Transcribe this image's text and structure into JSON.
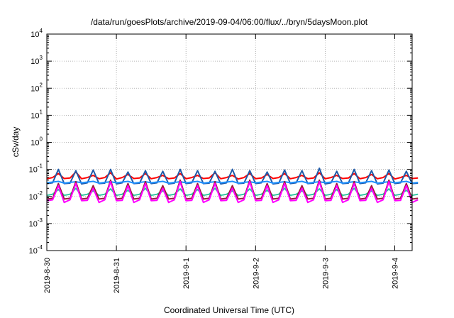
{
  "chart_data": {
    "type": "line",
    "title": "/data/run/goesPlots/archive/2019-09-04/06:00/flux/../bryn/5daysMoon.plot",
    "xlabel": "Coordinated Universal Time (UTC)",
    "ylabel": "cSv/day",
    "y_scale": "log",
    "ylim": [
      0.0001,
      10000
    ],
    "y_ticks": [
      {
        "base": "10",
        "exp": "-4",
        "value": 0.0001
      },
      {
        "base": "10",
        "exp": "-3",
        "value": 0.001
      },
      {
        "base": "10",
        "exp": "-2",
        "value": 0.01
      },
      {
        "base": "10",
        "exp": "-1",
        "value": 0.1
      },
      {
        "base": "10",
        "exp": "0",
        "value": 1
      },
      {
        "base": "10",
        "exp": "1",
        "value": 10
      },
      {
        "base": "10",
        "exp": "2",
        "value": 100
      },
      {
        "base": "10",
        "exp": "3",
        "value": 1000
      },
      {
        "base": "10",
        "exp": "4",
        "value": 10000
      }
    ],
    "xlim": [
      "2019-8-30",
      "2019-9-4 06:00"
    ],
    "x_ticks": [
      "2019-8-30",
      "2019-8-31",
      "2019-9-1",
      "2019-9-2",
      "2019-9-3",
      "2019-9-4"
    ],
    "grid": true,
    "x_step_hours": 2,
    "series": [
      {
        "color": "#ff0000",
        "values": [
          0.045,
          0.05,
          0.07,
          0.046,
          0.048,
          0.08,
          0.045,
          0.05,
          0.06,
          0.045,
          0.05,
          0.075,
          0.044,
          0.05,
          0.065,
          0.046,
          0.048,
          0.07,
          0.045,
          0.05,
          0.06,
          0.045,
          0.048,
          0.07,
          0.045,
          0.05,
          0.06,
          0.046,
          0.048,
          0.075,
          0.045,
          0.05,
          0.06,
          0.044,
          0.05,
          0.07,
          0.045,
          0.048,
          0.065,
          0.046,
          0.05,
          0.07,
          0.045,
          0.05,
          0.06,
          0.045,
          0.048,
          0.075,
          0.045,
          0.05,
          0.06,
          0.046,
          0.048,
          0.07,
          0.045,
          0.05,
          0.065,
          0.045,
          0.05,
          0.07,
          0.044,
          0.05,
          0.06,
          0.046,
          0.048
        ]
      },
      {
        "color": "#1e5aa8",
        "values": [
          0.03,
          0.032,
          0.1,
          0.03,
          0.031,
          0.09,
          0.029,
          0.032,
          0.095,
          0.03,
          0.031,
          0.1,
          0.029,
          0.032,
          0.08,
          0.03,
          0.031,
          0.09,
          0.03,
          0.032,
          0.085,
          0.029,
          0.031,
          0.1,
          0.03,
          0.032,
          0.09,
          0.03,
          0.031,
          0.085,
          0.029,
          0.032,
          0.1,
          0.03,
          0.031,
          0.09,
          0.03,
          0.032,
          0.08,
          0.029,
          0.031,
          0.095,
          0.03,
          0.032,
          0.09,
          0.03,
          0.031,
          0.11,
          0.029,
          0.032,
          0.085,
          0.03,
          0.031,
          0.1,
          0.03,
          0.032,
          0.09,
          0.029,
          0.031,
          0.095,
          0.03,
          0.032,
          0.085,
          0.03,
          0.031
        ]
      },
      {
        "color": "#1e90ff",
        "values": [
          0.032,
          0.034,
          0.036,
          0.031,
          0.033,
          0.035,
          0.032,
          0.034,
          0.036,
          0.031,
          0.033,
          0.035,
          0.032,
          0.034,
          0.036,
          0.031,
          0.033,
          0.035,
          0.032,
          0.034,
          0.036,
          0.031,
          0.033,
          0.035,
          0.032,
          0.034,
          0.036,
          0.031,
          0.033,
          0.035,
          0.032,
          0.034,
          0.036,
          0.031,
          0.033,
          0.035,
          0.032,
          0.034,
          0.036,
          0.031,
          0.033,
          0.035,
          0.032,
          0.034,
          0.036,
          0.031,
          0.033,
          0.035,
          0.032,
          0.034,
          0.036,
          0.031,
          0.033,
          0.035,
          0.032,
          0.034,
          0.036,
          0.031,
          0.033,
          0.035,
          0.032,
          0.034,
          0.036,
          0.031,
          0.033
        ]
      },
      {
        "color": "#2ec4a0",
        "values": [
          0.011,
          0.012,
          0.018,
          0.011,
          0.012,
          0.02,
          0.011,
          0.012,
          0.016,
          0.011,
          0.012,
          0.019,
          0.011,
          0.012,
          0.017,
          0.011,
          0.012,
          0.02,
          0.011,
          0.012,
          0.016,
          0.011,
          0.012,
          0.019,
          0.011,
          0.012,
          0.018,
          0.011,
          0.012,
          0.02,
          0.011,
          0.012,
          0.016,
          0.011,
          0.012,
          0.019,
          0.011,
          0.012,
          0.017,
          0.011,
          0.012,
          0.02,
          0.011,
          0.012,
          0.016,
          0.011,
          0.012,
          0.019,
          0.011,
          0.012,
          0.018,
          0.011,
          0.012,
          0.02,
          0.011,
          0.012,
          0.016,
          0.011,
          0.012,
          0.019,
          0.011,
          0.012,
          0.017,
          0.011,
          0.012
        ]
      },
      {
        "color": "#9c1a3c",
        "values": [
          0.008,
          0.0085,
          0.03,
          0.008,
          0.0085,
          0.035,
          0.008,
          0.0085,
          0.025,
          0.008,
          0.0085,
          0.04,
          0.008,
          0.0085,
          0.03,
          0.008,
          0.0085,
          0.035,
          0.008,
          0.0085,
          0.025,
          0.008,
          0.0085,
          0.04,
          0.008,
          0.0085,
          0.03,
          0.008,
          0.0085,
          0.035,
          0.008,
          0.0085,
          0.025,
          0.008,
          0.0085,
          0.04,
          0.008,
          0.0085,
          0.03,
          0.008,
          0.0085,
          0.035,
          0.008,
          0.0085,
          0.025,
          0.008,
          0.0085,
          0.04,
          0.008,
          0.0085,
          0.03,
          0.008,
          0.0085,
          0.035,
          0.008,
          0.0085,
          0.025,
          0.008,
          0.0085,
          0.04,
          0.008,
          0.0085,
          0.03,
          0.008,
          0.0085
        ]
      },
      {
        "color": "#ff00ff",
        "values": [
          0.007,
          0.0075,
          0.025,
          0.006,
          0.0075,
          0.03,
          0.007,
          0.0072,
          0.02,
          0.006,
          0.0075,
          0.035,
          0.007,
          0.0072,
          0.025,
          0.006,
          0.0075,
          0.03,
          0.007,
          0.0072,
          0.02,
          0.006,
          0.0075,
          0.035,
          0.007,
          0.0072,
          0.025,
          0.006,
          0.0075,
          0.03,
          0.007,
          0.0072,
          0.02,
          0.006,
          0.0075,
          0.035,
          0.007,
          0.0072,
          0.025,
          0.006,
          0.0075,
          0.03,
          0.007,
          0.0072,
          0.02,
          0.006,
          0.0075,
          0.035,
          0.007,
          0.0072,
          0.025,
          0.006,
          0.0075,
          0.03,
          0.007,
          0.0072,
          0.02,
          0.006,
          0.0075,
          0.035,
          0.007,
          0.0072,
          0.025,
          0.006,
          0.0075
        ]
      }
    ]
  }
}
